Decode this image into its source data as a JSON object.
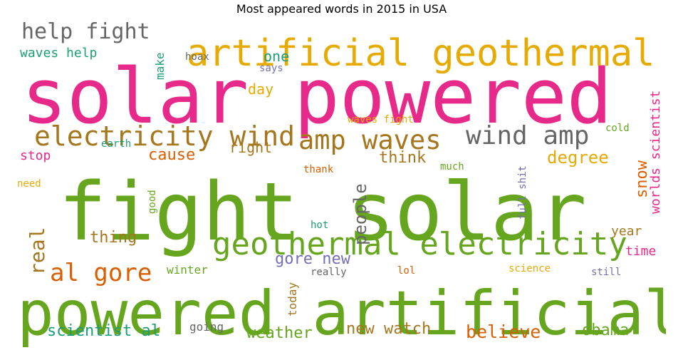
{
  "chart_data": {
    "type": "wordcloud",
    "title": "Most appeared words in 2015 in USA",
    "colors": {
      "green": "#66a61e",
      "pink": "#e7298a",
      "gold": "#e6ab02",
      "teal": "#1b9e77",
      "brown": "#a6761d",
      "gray": "#666666",
      "orange": "#d95f02",
      "purple": "#7570b3"
    },
    "words": [
      {
        "text": "solar powered",
        "size": 100,
        "color": "pink"
      },
      {
        "text": "fight solar",
        "size": 100,
        "color": "green"
      },
      {
        "text": "powered artificial",
        "size": 83,
        "color": "green"
      },
      {
        "text": "artificial geothermal",
        "size": 52,
        "color": "gold"
      },
      {
        "text": "geothermal electricity",
        "size": 44,
        "color": "green"
      },
      {
        "text": "electricity wind",
        "size": 38,
        "color": "brown"
      },
      {
        "text": "amp waves",
        "size": 37,
        "color": "brown"
      },
      {
        "text": "wind amp",
        "size": 36,
        "color": "gray"
      },
      {
        "text": "al gore",
        "size": 32,
        "color": "orange"
      },
      {
        "text": "help fight",
        "size": 30,
        "color": "gray"
      },
      {
        "text": "real",
        "size": 26,
        "color": "brown"
      },
      {
        "text": "people",
        "size": 24,
        "color": "gray"
      },
      {
        "text": "believe",
        "size": 24,
        "color": "orange"
      },
      {
        "text": "scientist al",
        "size": 22,
        "color": "teal"
      },
      {
        "text": "weather",
        "size": 22,
        "color": "green"
      },
      {
        "text": "new watch",
        "size": 22,
        "color": "brown"
      },
      {
        "text": "obama",
        "size": 22,
        "color": "green"
      },
      {
        "text": "degree",
        "size": 22,
        "color": "gold"
      },
      {
        "text": "think",
        "size": 22,
        "color": "brown"
      },
      {
        "text": "cause",
        "size": 22,
        "color": "orange"
      },
      {
        "text": "thing",
        "size": 22,
        "color": "brown"
      },
      {
        "text": "gore new",
        "size": 22,
        "color": "purple"
      },
      {
        "text": "snow",
        "size": 22,
        "color": "orange"
      },
      {
        "text": "right",
        "size": 20,
        "color": "brown"
      },
      {
        "text": "one",
        "size": 20,
        "color": "teal"
      },
      {
        "text": "day",
        "size": 20,
        "color": "gold"
      },
      {
        "text": "worlds scientist",
        "size": 18,
        "color": "pink"
      },
      {
        "text": "waves help",
        "size": 18,
        "color": "teal"
      },
      {
        "text": "stop",
        "size": 18,
        "color": "pink"
      },
      {
        "text": "year",
        "size": 18,
        "color": "brown"
      },
      {
        "text": "time",
        "size": 18,
        "color": "pink"
      },
      {
        "text": "today",
        "size": 16,
        "color": "brown"
      },
      {
        "text": "make",
        "size": 16,
        "color": "teal"
      },
      {
        "text": "winter",
        "size": 16,
        "color": "green"
      },
      {
        "text": "going",
        "size": 16,
        "color": "gray"
      },
      {
        "text": "really",
        "size": 14,
        "color": "gray"
      },
      {
        "text": "hot",
        "size": 14,
        "color": "teal"
      },
      {
        "text": "lol",
        "size": 14,
        "color": "orange"
      },
      {
        "text": "science",
        "size": 14,
        "color": "gold"
      },
      {
        "text": "still",
        "size": 14,
        "color": "purple"
      },
      {
        "text": "waves fight",
        "size": 14,
        "color": "gold"
      },
      {
        "text": "full shit",
        "size": 14,
        "color": "purple"
      },
      {
        "text": "cold",
        "size": 14,
        "color": "green"
      },
      {
        "text": "hoax",
        "size": 14,
        "color": "gray"
      },
      {
        "text": "says",
        "size": 14,
        "color": "purple"
      },
      {
        "text": "earth",
        "size": 14,
        "color": "teal"
      },
      {
        "text": "thank",
        "size": 14,
        "color": "orange"
      },
      {
        "text": "much",
        "size": 14,
        "color": "green"
      },
      {
        "text": "need",
        "size": 14,
        "color": "gold"
      },
      {
        "text": "good",
        "size": 14,
        "color": "green"
      }
    ]
  }
}
